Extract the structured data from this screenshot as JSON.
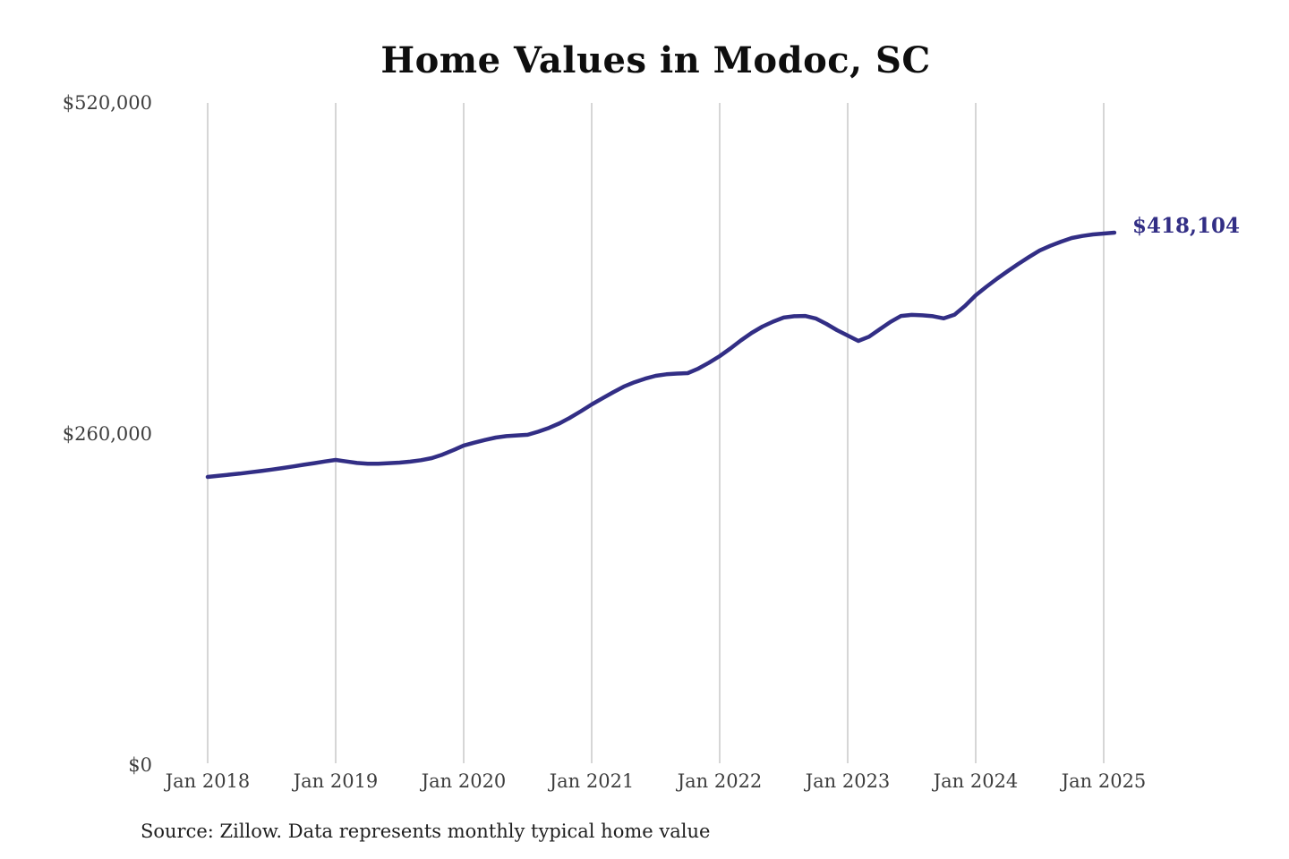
{
  "header": {
    "title": "Home Values in Modoc, SC"
  },
  "footer": {
    "source": "Source: Zillow. Data represents monthly typical home value"
  },
  "chart_data": {
    "type": "line",
    "title": "Home Values in Modoc, SC",
    "series_name": "Typical home value",
    "x_interval": "monthly",
    "first_month": "Jan 2018",
    "last_month": "Feb 2025",
    "ylim": [
      0,
      520000
    ],
    "grid": "vertical-only",
    "legend": "none",
    "end_label": "$418,104",
    "end_value": 418104,
    "colors": {
      "line": "#322e85",
      "gridline": "#c9c9c9",
      "tick_text": "#3d3d3d",
      "title_text": "#0e0e0e"
    },
    "y_ticks": [
      {
        "label": "$520,000",
        "value": 520000
      },
      {
        "label": "$260,000",
        "value": 260000
      },
      {
        "label": "$0",
        "value": 0
      }
    ],
    "x_ticks": [
      "Jan 2018",
      "Jan 2019",
      "Jan 2020",
      "Jan 2021",
      "Jan 2022",
      "Jan 2023",
      "Jan 2024",
      "Jan 2025"
    ],
    "values": [
      226300,
      227100,
      228000,
      228900,
      229900,
      230900,
      232000,
      233200,
      234500,
      235800,
      237100,
      238400,
      239600,
      238400,
      237200,
      236600,
      236700,
      237100,
      237500,
      238300,
      239400,
      241000,
      243800,
      247200,
      250900,
      253200,
      255300,
      257200,
      258300,
      258900,
      259400,
      261800,
      264800,
      268400,
      272900,
      277900,
      283200,
      288000,
      292700,
      297200,
      300600,
      303400,
      305700,
      306900,
      307400,
      307800,
      311400,
      316000,
      321100,
      327100,
      333500,
      339400,
      344300,
      348200,
      351400,
      352500,
      352700,
      350700,
      346400,
      341500,
      337300,
      333100,
      336400,
      342200,
      348000,
      352700,
      353500,
      353200,
      352500,
      350800,
      353600,
      360600,
      368900,
      375600,
      381900,
      387900,
      393600,
      399000,
      404100,
      407800,
      411000,
      413900,
      415500,
      416700,
      417400,
      418104
    ]
  }
}
